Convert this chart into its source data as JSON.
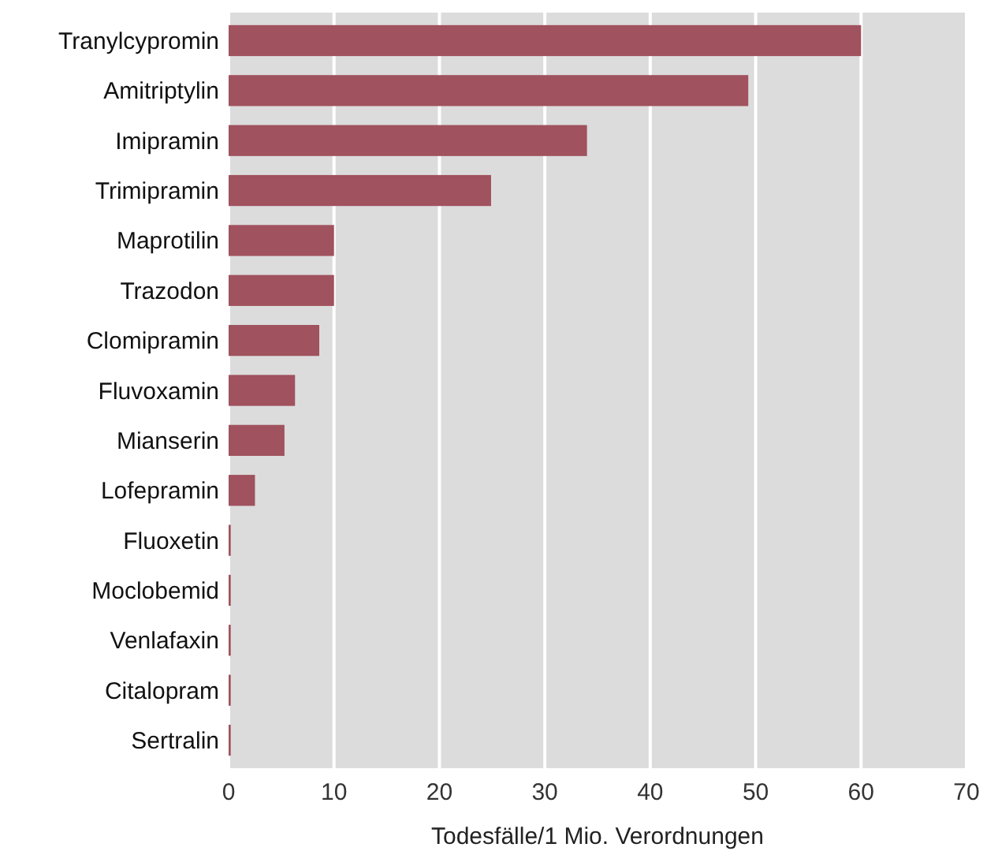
{
  "chart_data": {
    "type": "bar",
    "orientation": "horizontal",
    "xlabel": "Todesfälle/1 Mio. Verordnungen",
    "categories": [
      "Tranylcypromin",
      "Amitriptylin",
      "Imipramin",
      "Trimipramin",
      "Maprotilin",
      "Trazodon",
      "Clomipramin",
      "Fluvoxamin",
      "Mianserin",
      "Lofepramin",
      "Fluoxetin",
      "Moclobemid",
      "Venlafaxin",
      "Citalopram",
      "Sertralin"
    ],
    "values": [
      60,
      49.3,
      34,
      24.9,
      10,
      10,
      8.6,
      6.3,
      5.3,
      2.5,
      0.2,
      0.2,
      0.2,
      0.2,
      0.2
    ],
    "color": "#a0525e",
    "xlim": [
      0,
      70
    ],
    "xticks": [
      0,
      10,
      20,
      30,
      40,
      50,
      60,
      70
    ],
    "grid": "x"
  }
}
